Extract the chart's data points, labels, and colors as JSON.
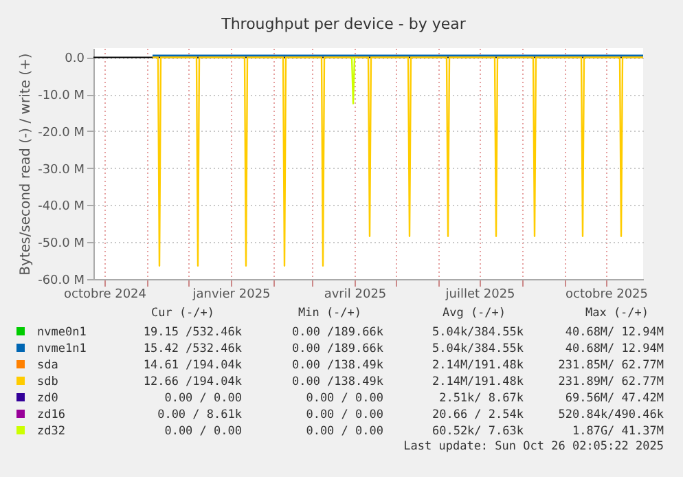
{
  "chart_data": {
    "type": "line",
    "title": "Throughput per device - by year",
    "ylabel": "Bytes/second read (-) / write (+)",
    "xlim": [
      "2024-09-23",
      "2025-10-28"
    ],
    "xticks": [
      {
        "value": "2024-10-01",
        "label": "octobre 2024"
      },
      {
        "value": "2024-11-01",
        "label": null
      },
      {
        "value": "2024-12-01",
        "label": null
      },
      {
        "value": "2025-01-01",
        "label": "janvier 2025"
      },
      {
        "value": "2025-02-01",
        "label": null
      },
      {
        "value": "2025-03-01",
        "label": null
      },
      {
        "value": "2025-04-01",
        "label": "avril 2025"
      },
      {
        "value": "2025-05-01",
        "label": null
      },
      {
        "value": "2025-06-01",
        "label": null
      },
      {
        "value": "2025-07-01",
        "label": "juillet 2025"
      },
      {
        "value": "2025-08-01",
        "label": null
      },
      {
        "value": "2025-09-01",
        "label": null
      },
      {
        "value": "2025-10-01",
        "label": "octobre 2025"
      }
    ],
    "ylim": [
      -60000000,
      2500000
    ],
    "yticks": [
      {
        "value": 0,
        "label": "0.0"
      },
      {
        "value": -10000000,
        "label": "-10.0 M"
      },
      {
        "value": -20000000,
        "label": "-20.0 M"
      },
      {
        "value": -30000000,
        "label": "-30.0 M"
      },
      {
        "value": -40000000,
        "label": "-40.0 M"
      },
      {
        "value": -50000000,
        "label": "-50.0 M"
      },
      {
        "value": -60000000,
        "label": "-60.0 M"
      }
    ],
    "grid": true,
    "legend": "bottom",
    "series": [
      {
        "name": "nvme0n1",
        "color": "#00cc00"
      },
      {
        "name": "nvme1n1",
        "color": "#0066b3",
        "x": [
          "2024-11-05",
          "2025-10-28"
        ],
        "values": [
          500000,
          500000
        ]
      },
      {
        "name": "sda",
        "color": "#ff8000"
      },
      {
        "name": "sdb",
        "color": "#ffcc00",
        "x": [
          "2024-11-05",
          "2024-11-09",
          "2024-11-10",
          "2024-11-11",
          "2024-12-07",
          "2024-12-08",
          "2024-12-09",
          "2025-01-11",
          "2025-01-12",
          "2025-01-13",
          "2025-02-08",
          "2025-02-09",
          "2025-02-10",
          "2025-03-08",
          "2025-03-09",
          "2025-03-10",
          "2025-04-11",
          "2025-04-12",
          "2025-04-13",
          "2025-05-10",
          "2025-05-11",
          "2025-05-12",
          "2025-06-07",
          "2025-06-08",
          "2025-06-09",
          "2025-07-12",
          "2025-07-13",
          "2025-07-14",
          "2025-08-09",
          "2025-08-10",
          "2025-08-11",
          "2025-09-13",
          "2025-09-14",
          "2025-09-15",
          "2025-10-11",
          "2025-10-12",
          "2025-10-13",
          "2025-10-28"
        ],
        "values": [
          0,
          0,
          -56400000,
          0,
          0,
          -56400000,
          0,
          0,
          -56400000,
          0,
          0,
          -56400000,
          0,
          0,
          -56400000,
          0,
          0,
          -48400000,
          0,
          0,
          -48400000,
          0,
          0,
          -48400000,
          0,
          0,
          -48400000,
          0,
          0,
          -48400000,
          0,
          0,
          -48400000,
          0,
          0,
          -48400000,
          0,
          0
        ]
      },
      {
        "name": "zd0",
        "color": "#330099"
      },
      {
        "name": "zd16",
        "color": "#990099"
      },
      {
        "name": "zd32",
        "color": "#ccff00",
        "x": [
          "2025-03-30",
          "2025-03-31",
          "2025-04-01"
        ],
        "values": [
          0,
          -12500000,
          0
        ]
      }
    ],
    "annotations": [
      "Cur (-/+)",
      "Min (-/+)",
      "Avg (-/+)",
      "Max (-/+)",
      "19.15 /532.46k",
      "0.00 /189.66k",
      "5.04k/384.55k",
      "40.68M/ 12.94M",
      "15.42 /532.46k",
      "0.00 /189.66k",
      "5.04k/384.55k",
      "40.68M/ 12.94M",
      "14.61 /194.04k",
      "0.00 /138.49k",
      "2.14M/191.48k",
      "231.85M/ 62.77M",
      "12.66 /194.04k",
      "0.00 /138.49k",
      "2.14M/191.48k",
      "231.89M/ 62.77M",
      "0.00 /  0.00",
      "0.00 /  0.00",
      "2.51k/  8.67k",
      "69.56M/ 47.42M",
      "0.00 /  8.61k",
      "0.00 /  0.00",
      "20.66 /  2.54k",
      "520.84k/490.46k",
      "0.00 /  0.00",
      "0.00 /  0.00",
      "60.52k/  7.63k",
      "1.87G/ 41.37M",
      "Last update: Sun Oct 26 02:05:22 2025"
    ]
  }
}
